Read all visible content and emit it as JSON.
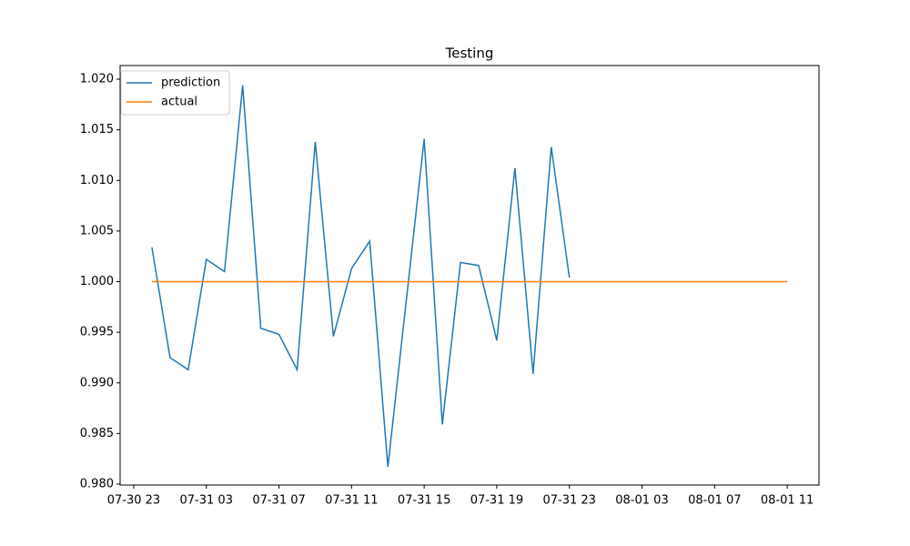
{
  "chart_data": {
    "type": "line",
    "title": "Testing",
    "series": [
      {
        "name": "prediction",
        "color": "#1f77b4",
        "x": [
          "07-31 00",
          "07-31 01",
          "07-31 02",
          "07-31 03",
          "07-31 04",
          "07-31 05",
          "07-31 06",
          "07-31 07",
          "07-31 08",
          "07-31 09",
          "07-31 10",
          "07-31 11",
          "07-31 12",
          "07-31 13",
          "07-31 14",
          "07-31 15",
          "07-31 16",
          "07-31 17",
          "07-31 18",
          "07-31 19",
          "07-31 20",
          "07-31 21",
          "07-31 22",
          "07-31 23"
        ],
        "values": [
          1.0034,
          0.9925,
          0.9913,
          1.0022,
          1.001,
          1.0194,
          0.9954,
          0.9948,
          0.9913,
          1.0138,
          0.9946,
          1.0013,
          1.004,
          0.9817,
          0.9979,
          1.0141,
          0.9859,
          1.0019,
          1.0016,
          0.9942,
          1.0112,
          0.9909,
          1.0133,
          1.0004
        ]
      },
      {
        "name": "actual",
        "color": "#ff7f0e",
        "x": [
          "07-31 00",
          "07-31 01",
          "07-31 02",
          "07-31 03",
          "07-31 04",
          "07-31 05",
          "07-31 06",
          "07-31 07",
          "07-31 08",
          "07-31 09",
          "07-31 10",
          "07-31 11",
          "07-31 12",
          "07-31 13",
          "07-31 14",
          "07-31 15",
          "07-31 16",
          "07-31 17",
          "07-31 18",
          "07-31 19",
          "07-31 20",
          "07-31 21",
          "07-31 22",
          "07-31 23",
          "08-01 00",
          "08-01 01",
          "08-01 02",
          "08-01 03",
          "08-01 04",
          "08-01 05",
          "08-01 06",
          "08-01 07",
          "08-01 08",
          "08-01 09",
          "08-01 10",
          "08-01 11"
        ],
        "values": [
          1,
          1,
          1,
          1,
          1,
          1,
          1,
          1,
          1,
          1,
          1,
          1,
          1,
          1,
          1,
          1,
          1,
          1,
          1,
          1,
          1,
          1,
          1,
          1,
          1,
          1,
          1,
          1,
          1,
          1,
          1,
          1,
          1,
          1,
          1,
          1
        ]
      }
    ],
    "xlim": [
      "07-30 22:15",
      "08-01 12:45"
    ],
    "xticks": [
      "07-30 23",
      "07-31 03",
      "07-31 07",
      "07-31 11",
      "07-31 15",
      "07-31 19",
      "07-31 23",
      "08-01 03",
      "08-01 07",
      "08-01 11"
    ],
    "ylim": [
      0.97991,
      1.02135
    ],
    "yticks": [
      {
        "value": 0.98,
        "label": "0.980"
      },
      {
        "value": 0.985,
        "label": "0.985"
      },
      {
        "value": 0.99,
        "label": "0.990"
      },
      {
        "value": 0.995,
        "label": "0.995"
      },
      {
        "value": 1.0,
        "label": "1.000"
      },
      {
        "value": 1.005,
        "label": "1.005"
      },
      {
        "value": 1.01,
        "label": "1.010"
      },
      {
        "value": 1.015,
        "label": "1.015"
      },
      {
        "value": 1.02,
        "label": "1.020"
      }
    ],
    "legend": "upper left"
  }
}
